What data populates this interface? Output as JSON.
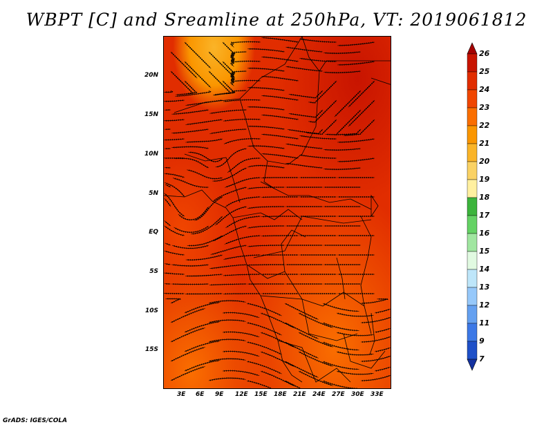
{
  "title": "WBPT [C] and Sreamline at 250hPa, VT: 2019061812",
  "credit": "GrADS: IGES/COLA",
  "map": {
    "region": "Central and Southern Africa",
    "lon_range": [
      0,
      35
    ],
    "lat_range": [
      -20,
      24
    ],
    "lat_labels": [
      "20N",
      "15N",
      "10N",
      "5N",
      "EQ",
      "5S",
      "10S",
      "15S"
    ],
    "lon_labels": [
      "3E",
      "6E",
      "9E",
      "12E",
      "15E",
      "18E",
      "21E",
      "24E",
      "27E",
      "30E",
      "33E"
    ],
    "variable": "WBPT [C]",
    "overlay": "Streamline",
    "level": "250hPa",
    "valid_time": "2019061812"
  },
  "colorbar": {
    "labels": [
      "26",
      "25",
      "24",
      "23",
      "22",
      "21",
      "20",
      "19",
      "18",
      "17",
      "16",
      "15",
      "14",
      "13",
      "12",
      "11",
      "9",
      "7"
    ],
    "colors": [
      "#a50000",
      "#c81400",
      "#e12d00",
      "#f04600",
      "#fa6e00",
      "#fa9600",
      "#fab428",
      "#fad264",
      "#fff0a0",
      "#3cb43c",
      "#64d264",
      "#a0e6a0",
      "#e1fae1",
      "#bee6fa",
      "#96c8fa",
      "#64a0f0",
      "#3c78e6",
      "#1e50c8",
      "#1432a0"
    ]
  }
}
